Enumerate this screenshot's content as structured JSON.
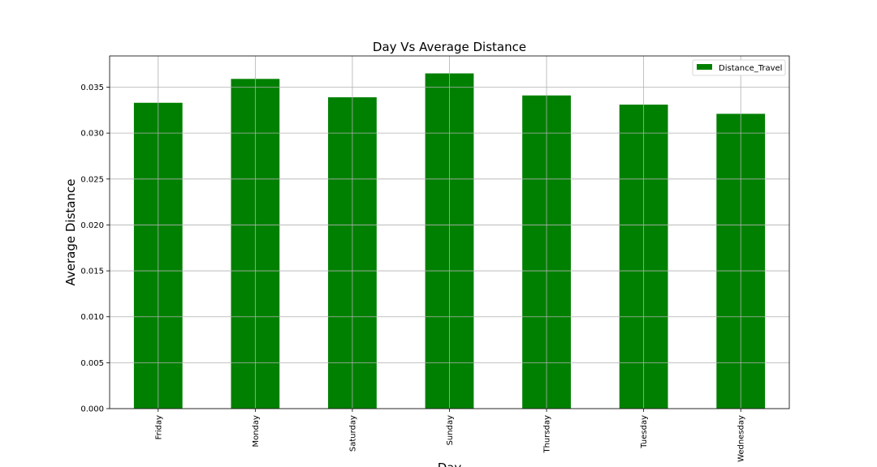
{
  "chart_data": {
    "type": "bar",
    "title": "Day Vs Average Distance",
    "xlabel": "Day",
    "ylabel": "Average Distance",
    "categories": [
      "Friday",
      "Monday",
      "Saturday",
      "Sunday",
      "Thursday",
      "Tuesday",
      "Wednesday"
    ],
    "series": [
      {
        "name": "Distance_Travel",
        "color": "#008000",
        "values": [
          0.0333,
          0.0359,
          0.0339,
          0.0365,
          0.0341,
          0.0331,
          0.0321
        ]
      }
    ],
    "ylim": [
      0,
      0.0384
    ],
    "yticks": [
      "0.000",
      "0.005",
      "0.010",
      "0.015",
      "0.020",
      "0.025",
      "0.030",
      "0.035"
    ],
    "ytick_values": [
      0,
      0.005,
      0.01,
      0.015,
      0.02,
      0.025,
      0.03,
      0.035
    ],
    "grid": true,
    "legend_position": "top-right",
    "gridColor": "#b0b0b0",
    "axisColor": "#000000"
  }
}
